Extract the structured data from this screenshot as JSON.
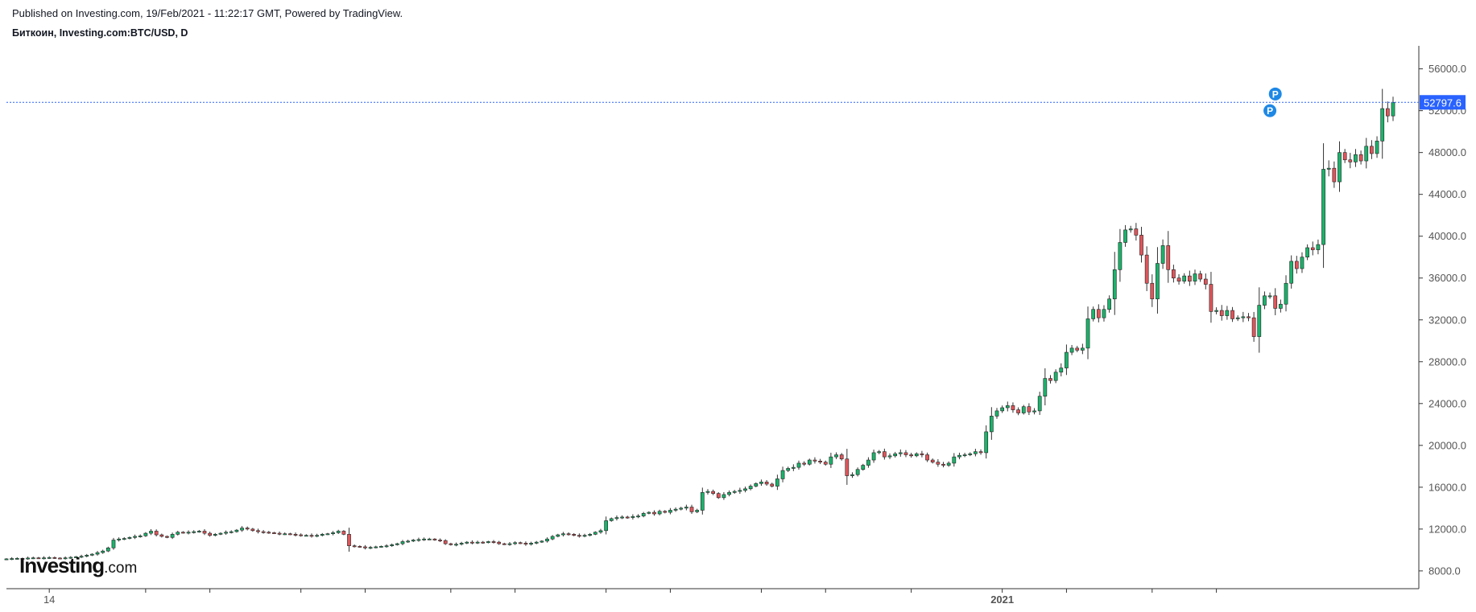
{
  "header": {
    "published": "Published on Investing.com, 19/Feb/2021 - 11:22:17 GMT, Powered by TradingView.",
    "symbol": "Биткоин, Investing.com:BTC/USD, D"
  },
  "logo": {
    "main": "Investing",
    "suffix": ".com"
  },
  "colors": {
    "up": "#26a69a",
    "upBody": "#1bb36b",
    "down": "#e0555a",
    "wick": "#333333",
    "priceLine": "#2962ff",
    "badge": "#1e88e5"
  },
  "chart_data": {
    "type": "candlestick",
    "title": "Биткоин, Investing.com:BTC/USD, D",
    "ylim": [
      6300,
      58200
    ],
    "y_ticks": [
      8000,
      12000,
      16000,
      20000,
      24000,
      28000,
      32000,
      36000,
      40000,
      44000,
      48000,
      52000,
      56000
    ],
    "y_tick_labels": [
      "8000.0",
      "12000.0",
      "16000.0",
      "20000.0",
      "24000.0",
      "28000.0",
      "32000.0",
      "36000.0",
      "40000.0",
      "44000.0",
      "48000.0",
      "52000.0",
      "56000.0"
    ],
    "x_labels": [
      {
        "label": "14",
        "index": 8,
        "bold": false
      },
      {
        "label": "2021",
        "index": 186,
        "bold": true
      }
    ],
    "x_ticks_index": [
      8,
      26,
      38,
      55,
      67,
      83,
      95,
      112,
      124,
      141,
      153,
      169,
      186,
      198,
      214,
      226
    ],
    "last_price": 52797.6,
    "last_price_label": "52797.6",
    "markers": [
      {
        "label": "P",
        "index": 237,
        "price": 53600
      },
      {
        "label": "P",
        "index": 236,
        "price": 52000
      }
    ],
    "closes": [
      9150,
      9180,
      9200,
      9190,
      9230,
      9250,
      9230,
      9250,
      9280,
      9230,
      9200,
      9250,
      9300,
      9350,
      9400,
      9500,
      9600,
      9750,
      9900,
      10200,
      10950,
      11050,
      11100,
      11200,
      11300,
      11350,
      11600,
      11800,
      11450,
      11300,
      11200,
      11500,
      11700,
      11650,
      11700,
      11750,
      11800,
      11600,
      11400,
      11500,
      11600,
      11700,
      11750,
      11900,
      12100,
      12000,
      11850,
      11750,
      11700,
      11650,
      11600,
      11550,
      11550,
      11500,
      11450,
      11400,
      11400,
      11350,
      11400,
      11500,
      11550,
      11650,
      11800,
      11500,
      10400,
      10350,
      10300,
      10200,
      10250,
      10300,
      10350,
      10400,
      10500,
      10600,
      10800,
      10850,
      10950,
      11000,
      11050,
      11050,
      10950,
      10900,
      10600,
      10500,
      10550,
      10650,
      10750,
      10700,
      10750,
      10700,
      10800,
      10750,
      10600,
      10550,
      10600,
      10700,
      10650,
      10550,
      10650,
      10750,
      10850,
      11050,
      11300,
      11450,
      11550,
      11500,
      11400,
      11350,
      11400,
      11500,
      11700,
      11850,
      12800,
      13000,
      13100,
      13150,
      13100,
      13200,
      13250,
      13500,
      13600,
      13450,
      13700,
      13600,
      13800,
      13900,
      14000,
      14100,
      13650,
      13800,
      15500,
      15600,
      15400,
      15000,
      15300,
      15500,
      15600,
      15700,
      15850,
      16100,
      16350,
      16500,
      16300,
      16100,
      16800,
      17600,
      17800,
      17900,
      18300,
      18200,
      18600,
      18500,
      18400,
      18200,
      18900,
      19100,
      18700,
      17100,
      17200,
      17700,
      18100,
      18600,
      19300,
      19400,
      18900,
      19000,
      19200,
      19300,
      19100,
      19000,
      19200,
      19100,
      18600,
      18400,
      18200,
      18100,
      18300,
      18900,
      19050,
      19100,
      19200,
      19400,
      19300,
      21300,
      22800,
      23300,
      23600,
      23800,
      23400,
      23100,
      23700,
      23200,
      23300,
      24700,
      26400,
      26200,
      27000,
      27400,
      28900,
      29300,
      29100,
      29300,
      32100,
      33000,
      32200,
      33000,
      34000,
      36800,
      39400,
      40600,
      40700,
      40100,
      38200,
      35500,
      34000,
      37400,
      39100,
      36800,
      36000,
      35700,
      36200,
      35700,
      36400,
      35900,
      35400,
      32800,
      32900,
      32400,
      32900,
      32100,
      32200,
      32300,
      32200,
      30400,
      33400,
      34300,
      34300,
      33100,
      33500,
      35500,
      37600,
      36900,
      38000,
      38900,
      38700,
      39200,
      46400,
      46500,
      45200,
      48000,
      47300,
      47100,
      47800,
      47200,
      48600,
      47900,
      49100,
      52200,
      51500,
      52797.6
    ]
  }
}
